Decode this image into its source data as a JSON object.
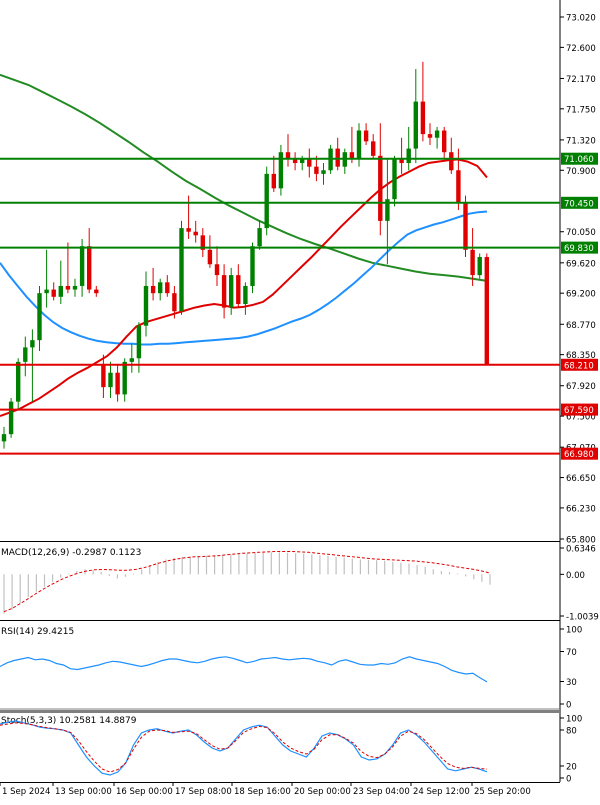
{
  "chart_data": {
    "type": "candlestick",
    "main": {
      "price_labels": [
        "73.020",
        "72.600",
        "72.170",
        "71.750",
        "71.320",
        "70.900",
        "70.050",
        "69.620",
        "69.200",
        "68.770",
        "68.350",
        "67.920",
        "67.500",
        "67.070",
        "66.650",
        "66.230",
        "65.800"
      ],
      "ylim": [
        65.8,
        73.02
      ],
      "levels": [
        {
          "value": 71.06,
          "label": "71.060",
          "color": "#008000"
        },
        {
          "value": 70.45,
          "label": "70.450",
          "color": "#008000"
        },
        {
          "value": 69.83,
          "label": "69.830",
          "color": "#008000"
        },
        {
          "value": 68.21,
          "label": "68.210",
          "color": "#e00000"
        },
        {
          "value": 67.59,
          "label": "67.590",
          "color": "#e00000"
        },
        {
          "value": 66.98,
          "label": "66.980",
          "color": "#e00000"
        }
      ],
      "candles": [
        {
          "o": 67.15,
          "h": 67.35,
          "l": 67.05,
          "c": 67.25
        },
        {
          "o": 67.25,
          "h": 67.75,
          "l": 67.2,
          "c": 67.7
        },
        {
          "o": 67.7,
          "h": 68.3,
          "l": 67.6,
          "c": 68.25
        },
        {
          "o": 68.25,
          "h": 68.6,
          "l": 68.05,
          "c": 68.45
        },
        {
          "o": 68.45,
          "h": 68.7,
          "l": 67.7,
          "c": 68.55
        },
        {
          "o": 68.55,
          "h": 69.3,
          "l": 68.4,
          "c": 69.2
        },
        {
          "o": 69.2,
          "h": 69.8,
          "l": 69.0,
          "c": 69.25
        },
        {
          "o": 69.25,
          "h": 69.35,
          "l": 69.1,
          "c": 69.15
        },
        {
          "o": 69.15,
          "h": 69.65,
          "l": 69.05,
          "c": 69.3
        },
        {
          "o": 69.3,
          "h": 69.9,
          "l": 69.2,
          "c": 69.25
        },
        {
          "o": 69.25,
          "h": 69.4,
          "l": 69.15,
          "c": 69.3
        },
        {
          "o": 69.3,
          "h": 69.95,
          "l": 69.15,
          "c": 69.85
        },
        {
          "o": 69.85,
          "h": 70.1,
          "l": 69.2,
          "c": 69.25
        },
        {
          "o": 69.25,
          "h": 69.3,
          "l": 69.15,
          "c": 69.2
        },
        {
          "o": 68.2,
          "h": 68.35,
          "l": 67.75,
          "c": 67.9
        },
        {
          "o": 67.9,
          "h": 68.25,
          "l": 67.75,
          "c": 68.1
        },
        {
          "o": 68.1,
          "h": 68.2,
          "l": 67.7,
          "c": 67.8
        },
        {
          "o": 67.8,
          "h": 68.3,
          "l": 67.7,
          "c": 68.25
        },
        {
          "o": 68.25,
          "h": 68.5,
          "l": 68.1,
          "c": 68.3
        },
        {
          "o": 68.3,
          "h": 68.8,
          "l": 68.1,
          "c": 68.75
        },
        {
          "o": 68.75,
          "h": 69.5,
          "l": 68.6,
          "c": 69.3
        },
        {
          "o": 69.3,
          "h": 69.55,
          "l": 69.1,
          "c": 69.2
        },
        {
          "o": 69.2,
          "h": 69.4,
          "l": 69.1,
          "c": 69.35
        },
        {
          "o": 69.35,
          "h": 69.45,
          "l": 69.15,
          "c": 69.2
        },
        {
          "o": 69.2,
          "h": 69.3,
          "l": 68.85,
          "c": 68.95
        },
        {
          "o": 68.95,
          "h": 70.2,
          "l": 68.9,
          "c": 70.1
        },
        {
          "o": 70.1,
          "h": 70.55,
          "l": 69.95,
          "c": 70.05
        },
        {
          "o": 70.05,
          "h": 70.2,
          "l": 69.9,
          "c": 70.0
        },
        {
          "o": 70.0,
          "h": 70.1,
          "l": 69.7,
          "c": 69.8
        },
        {
          "o": 69.8,
          "h": 70.0,
          "l": 69.55,
          "c": 69.6
        },
        {
          "o": 69.6,
          "h": 69.85,
          "l": 69.3,
          "c": 69.45
        },
        {
          "o": 69.45,
          "h": 69.6,
          "l": 68.85,
          "c": 69.0
        },
        {
          "o": 69.0,
          "h": 69.55,
          "l": 68.9,
          "c": 69.45
        },
        {
          "o": 69.45,
          "h": 69.6,
          "l": 69.0,
          "c": 69.05
        },
        {
          "o": 69.05,
          "h": 69.35,
          "l": 68.9,
          "c": 69.3
        },
        {
          "o": 69.3,
          "h": 69.9,
          "l": 69.2,
          "c": 69.85
        },
        {
          "o": 69.85,
          "h": 70.2,
          "l": 69.8,
          "c": 70.1
        },
        {
          "o": 70.1,
          "h": 70.95,
          "l": 70.0,
          "c": 70.85
        },
        {
          "o": 70.85,
          "h": 71.1,
          "l": 70.6,
          "c": 70.65
        },
        {
          "o": 70.65,
          "h": 71.25,
          "l": 70.55,
          "c": 71.15
        },
        {
          "o": 71.15,
          "h": 71.4,
          "l": 70.95,
          "c": 71.05
        },
        {
          "o": 71.05,
          "h": 71.15,
          "l": 70.9,
          "c": 71.0
        },
        {
          "o": 71.0,
          "h": 71.1,
          "l": 70.9,
          "c": 71.05
        },
        {
          "o": 71.05,
          "h": 71.2,
          "l": 70.8,
          "c": 70.95
        },
        {
          "o": 70.95,
          "h": 71.1,
          "l": 70.75,
          "c": 70.85
        },
        {
          "o": 70.85,
          "h": 71.0,
          "l": 70.7,
          "c": 70.9
        },
        {
          "o": 70.9,
          "h": 71.25,
          "l": 70.85,
          "c": 71.2
        },
        {
          "o": 71.2,
          "h": 71.35,
          "l": 70.9,
          "c": 70.95
        },
        {
          "o": 70.95,
          "h": 71.2,
          "l": 70.85,
          "c": 71.15
        },
        {
          "o": 71.15,
          "h": 71.5,
          "l": 71.0,
          "c": 71.05
        },
        {
          "o": 71.05,
          "h": 71.55,
          "l": 70.95,
          "c": 71.45
        },
        {
          "o": 71.45,
          "h": 71.55,
          "l": 71.25,
          "c": 71.3
        },
        {
          "o": 71.3,
          "h": 71.4,
          "l": 71.05,
          "c": 71.1
        },
        {
          "o": 71.1,
          "h": 71.55,
          "l": 70.0,
          "c": 70.2
        },
        {
          "o": 70.2,
          "h": 71.05,
          "l": 69.6,
          "c": 70.5
        },
        {
          "o": 70.5,
          "h": 71.1,
          "l": 70.4,
          "c": 71.05
        },
        {
          "o": 71.05,
          "h": 71.35,
          "l": 70.85,
          "c": 71.0
        },
        {
          "o": 71.0,
          "h": 71.5,
          "l": 70.9,
          "c": 71.2
        },
        {
          "o": 71.2,
          "h": 72.3,
          "l": 71.0,
          "c": 71.85
        },
        {
          "o": 71.85,
          "h": 72.4,
          "l": 71.3,
          "c": 71.4
        },
        {
          "o": 71.4,
          "h": 71.55,
          "l": 71.25,
          "c": 71.35
        },
        {
          "o": 71.35,
          "h": 71.5,
          "l": 71.2,
          "c": 71.45
        },
        {
          "o": 71.45,
          "h": 71.5,
          "l": 71.05,
          "c": 71.15
        },
        {
          "o": 71.15,
          "h": 71.35,
          "l": 70.85,
          "c": 70.9
        },
        {
          "o": 70.9,
          "h": 71.2,
          "l": 70.35,
          "c": 70.45
        },
        {
          "o": 70.45,
          "h": 70.55,
          "l": 69.7,
          "c": 69.8
        },
        {
          "o": 69.8,
          "h": 70.1,
          "l": 69.3,
          "c": 69.45
        },
        {
          "o": 69.45,
          "h": 69.75,
          "l": 69.4,
          "c": 69.7
        },
        {
          "o": 69.7,
          "h": 69.75,
          "l": 68.21,
          "c": 68.21
        }
      ],
      "ma_red": [
        67.5,
        67.55,
        67.6,
        67.67,
        67.74,
        67.83,
        67.92,
        68.02,
        68.1,
        68.17,
        68.25,
        68.33,
        68.45,
        68.6,
        68.74,
        68.8,
        68.84,
        68.88,
        68.92,
        68.96,
        69.0,
        69.03,
        69.05,
        69.03,
        69.0,
        69.01,
        69.04,
        69.08,
        69.18,
        69.31,
        69.44,
        69.57,
        69.7,
        69.84,
        69.98,
        70.12,
        70.25,
        70.38,
        70.51,
        70.63,
        70.73,
        70.81,
        70.88,
        70.95,
        71.0,
        71.02,
        71.04,
        71.05,
        71.02,
        70.96,
        70.8
      ],
      "ma_red_start": 18,
      "ma_blue": [
        69.62,
        69.45,
        69.3,
        69.15,
        69.02,
        68.9,
        68.8,
        68.72,
        68.66,
        68.61,
        68.57,
        68.54,
        68.52,
        68.51,
        68.5,
        68.5,
        68.49,
        68.49,
        68.5,
        68.5,
        68.51,
        68.52,
        68.53,
        68.54,
        68.55,
        68.56,
        68.57,
        68.58,
        68.6,
        68.63,
        68.67,
        68.71,
        68.76,
        68.81,
        68.85,
        68.9,
        68.97,
        69.05,
        69.14,
        69.24,
        69.34,
        69.45,
        69.56,
        69.68,
        69.8,
        69.91,
        70.01,
        70.07,
        70.11,
        70.15,
        70.18,
        70.22,
        70.26,
        70.3,
        70.32,
        70.33
      ],
      "ma_blue_start": 0,
      "ma_green": [
        72.22,
        72.15,
        72.08,
        71.98,
        71.88,
        71.78,
        71.67,
        71.55,
        71.42,
        71.29,
        71.15,
        71.02,
        70.88,
        70.75,
        70.64,
        70.52,
        70.41,
        70.31,
        70.21,
        70.12,
        70.03,
        69.95,
        69.88,
        69.82,
        69.75,
        69.68,
        69.62,
        69.58,
        69.54,
        69.5,
        69.47,
        69.45,
        69.43,
        69.4,
        69.37
      ],
      "ma_green_start": 0
    },
    "macd": {
      "label": "MACD(12,26,9) -0.2987 0.1123",
      "tick_labels": [
        "0.6346",
        "0.00",
        "-1.0039"
      ],
      "ylim": [
        -1.0039,
        0.6346
      ],
      "signal_color": "#e00000",
      "hist_color": "#c0c0c0"
    },
    "rsi": {
      "label": "RSI(14) 29.4215",
      "tick_labels": [
        "100",
        "70",
        "30",
        "0"
      ],
      "ylim": [
        0,
        100
      ],
      "values": [
        50,
        55,
        58,
        60,
        62,
        59,
        60,
        58,
        54,
        52,
        47,
        46,
        48,
        50,
        52,
        55,
        57,
        56,
        54,
        52,
        50,
        52,
        55,
        58,
        60,
        60,
        58,
        56,
        55,
        57,
        60,
        62,
        63,
        61,
        58,
        55,
        57,
        60,
        61,
        62,
        60,
        59,
        60,
        61,
        60,
        57,
        55,
        52,
        57,
        59,
        56,
        53,
        52,
        52,
        54,
        53,
        55,
        60,
        63,
        60,
        58,
        56,
        54,
        50,
        45,
        42,
        40,
        41,
        35,
        29.42
      ],
      "color": "#1e90ff"
    },
    "stoch": {
      "label": "Stoch(5,3,3) 10.2581 14.8879",
      "tick_labels": [
        "100",
        "80",
        "20",
        "0"
      ],
      "ylim": [
        0,
        100
      ],
      "k_values": [
        90,
        93,
        95,
        92,
        89,
        85,
        83,
        82,
        80,
        75,
        55,
        35,
        20,
        8,
        5,
        10,
        25,
        55,
        75,
        80,
        82,
        78,
        75,
        78,
        80,
        72,
        60,
        50,
        45,
        50,
        65,
        80,
        85,
        88,
        85,
        70,
        55,
        45,
        40,
        35,
        50,
        70,
        75,
        72,
        65,
        55,
        35,
        30,
        32,
        40,
        55,
        75,
        80,
        72,
        60,
        45,
        30,
        15,
        12,
        15,
        18,
        15,
        10.26
      ],
      "d_values": [
        88,
        90,
        92,
        91,
        89,
        86,
        84,
        82,
        80,
        76,
        62,
        44,
        28,
        15,
        10,
        14,
        25,
        48,
        68,
        78,
        80,
        79,
        76,
        77,
        78,
        74,
        64,
        54,
        48,
        50,
        62,
        76,
        82,
        86,
        84,
        74,
        60,
        50,
        44,
        40,
        48,
        64,
        72,
        72,
        66,
        58,
        44,
        36,
        34,
        40,
        52,
        70,
        78,
        74,
        64,
        50,
        36,
        24,
        18,
        16,
        18,
        16,
        14.89
      ],
      "k_color": "#1e90ff",
      "d_color": "#e00000"
    },
    "x_axis": {
      "labels": [
        "1 Sep 2024",
        "13 Sep 00:00",
        "16 Sep 00:00",
        "17 Sep 08:00",
        "18 Sep 16:00",
        "20 Sep 00:00",
        "23 Sep 04:00",
        "24 Sep 12:00",
        "25 Sep 20:00"
      ]
    }
  }
}
